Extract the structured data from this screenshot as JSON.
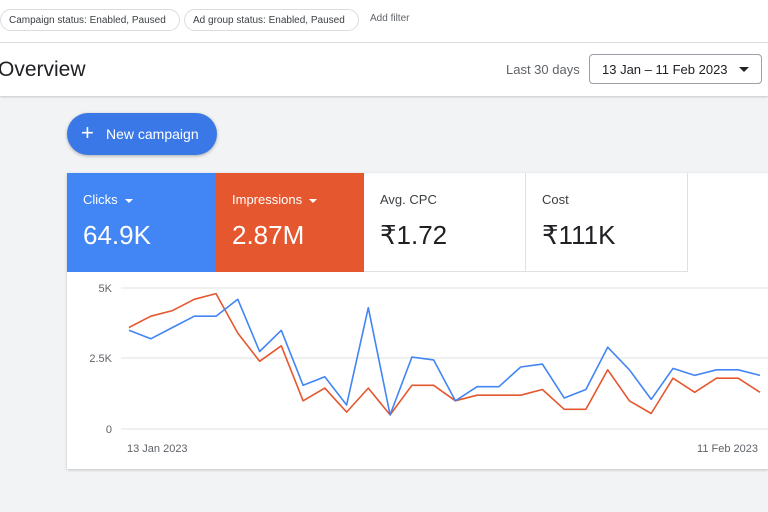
{
  "filters": {
    "chips": [
      "Campaign status: Enabled, Paused",
      "Ad group status: Enabled, Paused"
    ],
    "add_filter": "Add filter"
  },
  "header": {
    "title": "Overview",
    "range_label": "Last 30 days",
    "date_range": "13 Jan – 11 Feb 2023"
  },
  "new_campaign": {
    "label": "New campaign",
    "icon": "plus-icon"
  },
  "metrics": [
    {
      "label": "Clicks",
      "value": "64.9K",
      "color": "#4285f4",
      "selected": true
    },
    {
      "label": "Impressions",
      "value": "2.87M",
      "color": "#e5572f",
      "selected": true
    },
    {
      "label": "Avg. CPC",
      "value": "₹1.72",
      "selected": false
    },
    {
      "label": "Cost",
      "value": "₹111K",
      "selected": false
    }
  ],
  "chart_data": {
    "type": "line",
    "y_ticks": [
      "5K",
      "2.5K",
      "0"
    ],
    "ylim": [
      0,
      5000
    ],
    "x_labels": [
      "13 Jan 2023",
      "11 Feb 2023"
    ],
    "x": [
      "2023-01-13",
      "2023-01-14",
      "2023-01-15",
      "2023-01-16",
      "2023-01-17",
      "2023-01-18",
      "2023-01-19",
      "2023-01-20",
      "2023-01-21",
      "2023-01-22",
      "2023-01-23",
      "2023-01-24",
      "2023-01-25",
      "2023-01-26",
      "2023-01-27",
      "2023-01-28",
      "2023-01-29",
      "2023-01-30",
      "2023-01-31",
      "2023-02-01",
      "2023-02-02",
      "2023-02-03",
      "2023-02-04",
      "2023-02-05",
      "2023-02-06",
      "2023-02-07",
      "2023-02-08",
      "2023-02-09",
      "2023-02-10",
      "2023-02-11"
    ],
    "series": [
      {
        "name": "Clicks",
        "color": "#4285f4",
        "values": [
          3500,
          3200,
          3600,
          4000,
          4000,
          4600,
          2750,
          3500,
          1550,
          1850,
          850,
          4300,
          500,
          2550,
          2450,
          1000,
          1500,
          1500,
          2200,
          2300,
          1100,
          1400,
          2900,
          2100,
          1050,
          2150,
          1900,
          2100,
          2100,
          1900
        ]
      },
      {
        "name": "Impressions",
        "color": "#e5572f",
        "values": [
          3600,
          4000,
          4200,
          4600,
          4800,
          3400,
          2400,
          2950,
          1000,
          1450,
          600,
          1450,
          500,
          1550,
          1550,
          1000,
          1200,
          1200,
          1200,
          1400,
          700,
          700,
          2100,
          1000,
          550,
          1800,
          1300,
          1800,
          1800,
          1300
        ]
      }
    ]
  }
}
